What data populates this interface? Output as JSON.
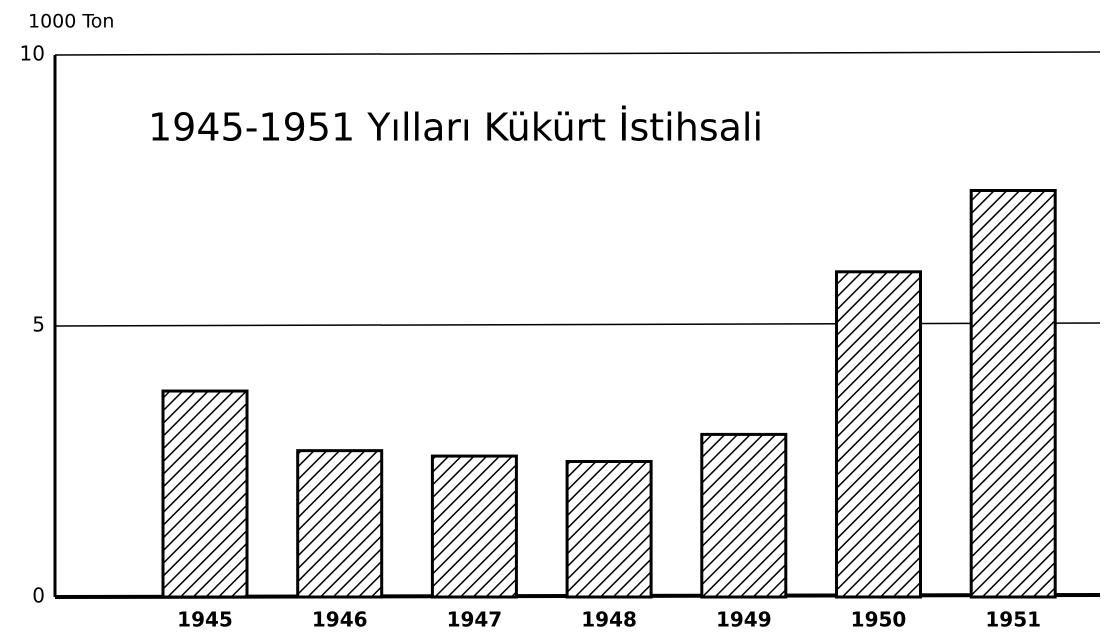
{
  "chart_data": {
    "type": "bar",
    "title": "1945-1951 Yılları Kükürt İstihsali",
    "y_label": "1000 Ton",
    "categories": [
      "1945",
      "1946",
      "1947",
      "1948",
      "1949",
      "1950",
      "1951"
    ],
    "values": [
      3.8,
      2.7,
      2.6,
      2.5,
      3.0,
      6.0,
      7.5
    ],
    "color": "#000000",
    "ylim": [
      0,
      10
    ],
    "yticks": [
      0,
      5,
      10
    ],
    "grid": true
  }
}
